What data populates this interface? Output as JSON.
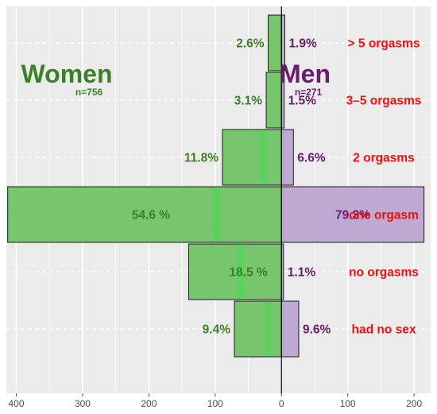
{
  "chart_data": {
    "type": "bar",
    "orientation": "horizontal-diverging",
    "categories": [
      "> 5 orgasms",
      "3–5 orgasms",
      "2 orgasms",
      "one orgasm",
      "no orgasms",
      "had no sex"
    ],
    "series": [
      {
        "name": "Women",
        "n_label": "n=756",
        "side": "left",
        "counts": [
          20,
          23,
          89,
          413,
          140,
          71
        ],
        "labels": [
          "2.6%",
          "3.1%",
          "11.8%",
          "54.6 %",
          "18.5 %",
          "9.4%"
        ],
        "inner_marks": [
          null,
          null,
          28,
          98,
          62,
          20
        ],
        "color": "#77c66e",
        "stroke": "#1a1a1a",
        "label_color": "#3d7f27"
      },
      {
        "name": "Men",
        "n_label": "n=271",
        "side": "right",
        "counts": [
          5,
          4,
          18,
          215,
          3,
          26
        ],
        "labels": [
          "1.9%",
          "1.5%",
          "6.6%",
          "79.3%",
          "1.1%",
          "9.6%"
        ],
        "color": "#bfa9d3",
        "stroke": "#1a1a1a",
        "label_color": "#6a1b6a"
      }
    ],
    "xlim": [
      -415,
      225
    ],
    "xticks": [
      -400,
      -300,
      -200,
      -100,
      0,
      100,
      200
    ],
    "xtick_labels": [
      "400",
      "300",
      "200",
      "100",
      "0",
      "100",
      "200"
    ],
    "grid": true,
    "colors": {
      "panel_bg": "#ebebeb",
      "grid": "#ffffff",
      "category_label": "#ee1111",
      "women_title": "#3d7f27",
      "men_title": "#6a1b6a",
      "inner_mark": "#5ccf5c"
    }
  }
}
